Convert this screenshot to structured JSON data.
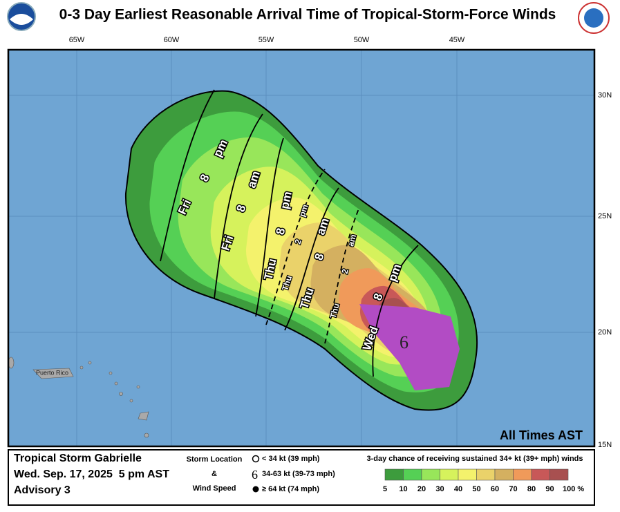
{
  "header": {
    "title": "0-3 Day Earliest Reasonable Arrival Time of Tropical-Storm-Force Winds"
  },
  "map": {
    "lon_labels": [
      "65W",
      "60W",
      "55W",
      "50W",
      "45W"
    ],
    "lat_labels": [
      "30N",
      "25N",
      "20N",
      "15N"
    ],
    "place_label": "Puerto Rico",
    "note": "All Times AST",
    "isochrones": [
      {
        "day": "Fri",
        "hour": "8",
        "ampm": "pm"
      },
      {
        "day": "Fri",
        "hour": "8",
        "ampm": "am"
      },
      {
        "day": "Thu",
        "hour": "8",
        "ampm": "pm"
      },
      {
        "day": "Thu",
        "hour": "2",
        "ampm": "pm"
      },
      {
        "day": "Thu",
        "hour": "8",
        "ampm": "am"
      },
      {
        "day": "Thu",
        "hour": "2",
        "ampm": "am"
      },
      {
        "day": "Wed",
        "hour": "8",
        "ampm": "pm"
      }
    ]
  },
  "legend": {
    "storm_name": "Tropical Storm Gabrielle",
    "datetime": "Wed. Sep. 17, 2025  5 pm AST",
    "advisory": "Advisory 3",
    "location_title": "Storm Location",
    "amp": "&",
    "wind_title": "Wind Speed",
    "wind_classes": [
      "< 34 kt (39 mph)",
      "34-63 kt (39-73 mph)",
      "≥ 64 kt (74 mph)"
    ],
    "scale_title": "3-day chance of receiving sustained 34+ kt (39+ mph) winds",
    "scale_ticks": [
      "5",
      "10",
      "20",
      "30",
      "40",
      "50",
      "60",
      "70",
      "80",
      "90",
      "100 %"
    ],
    "scale_colors": [
      "#3d9c3d",
      "#55d055",
      "#98e65a",
      "#d6f25c",
      "#f4f26c",
      "#ead26a",
      "#d4b060",
      "#f09a5a",
      "#c85858",
      "#a85050",
      "#b24cc4"
    ]
  }
}
